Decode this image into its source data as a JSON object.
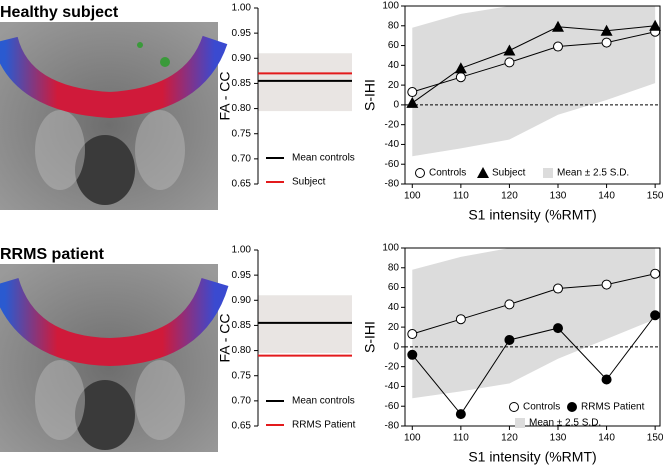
{
  "rows": [
    {
      "title": "Healthy subject"
    },
    {
      "title": "RRMS patient"
    }
  ],
  "chart_data": [
    {
      "type": "level",
      "ylabel": "FA - CC",
      "ylim": [
        0.65,
        1.0
      ],
      "yticks": [
        0.65,
        {
          "value": 0.7,
          "label": "0.70"
        },
        0.75,
        {
          "value": 0.8,
          "label": "0.80"
        },
        0.85,
        {
          "value": 0.9,
          "label": "0.90"
        },
        0.95,
        {
          "value": 1.0,
          "label": "1.00"
        }
      ],
      "band": {
        "lower": 0.795,
        "upper": 0.91,
        "color": "#e9e5e3"
      },
      "series": [
        {
          "name": "Mean controls",
          "color": "#000000",
          "values": [
            0.855
          ]
        },
        {
          "name": "Subject",
          "color": "#e31a1c",
          "values": [
            0.87
          ]
        }
      ]
    },
    {
      "type": "line",
      "ylabel": "S-IHI",
      "xlabel": "S1 intensity (%RMT)",
      "x": [
        100,
        110,
        120,
        130,
        140,
        150
      ],
      "xlim": [
        98.5,
        151
      ],
      "xticks": [
        100,
        110,
        120,
        130,
        140,
        150
      ],
      "ylim": [
        -80,
        100
      ],
      "yticks": [
        -80,
        -60,
        -40,
        -20,
        0,
        20,
        40,
        60,
        80,
        100
      ],
      "reference_line": 0,
      "band": {
        "name": "Mean ± 2.5 S.D.",
        "color": "#dcdcdc",
        "lower": [
          -52,
          -44,
          -35,
          -10,
          5,
          22
        ],
        "upper": [
          78,
          92,
          100,
          100,
          100,
          100
        ]
      },
      "series": [
        {
          "name": "Controls",
          "color": "#000000",
          "marker": "circle-open",
          "values": [
            13,
            28,
            43,
            59,
            63,
            74
          ]
        },
        {
          "name": "Subject",
          "color": "#000000",
          "marker": "triangle",
          "values": [
            2,
            37,
            55,
            79,
            75,
            80
          ]
        }
      ]
    },
    {
      "type": "level",
      "ylabel": "FA - CC",
      "ylim": [
        0.65,
        1.0
      ],
      "yticks": [
        0.65,
        {
          "value": 0.7,
          "label": "0.70"
        },
        0.75,
        {
          "value": 0.8,
          "label": "0.80"
        },
        0.85,
        {
          "value": 0.9,
          "label": "0.90"
        },
        0.95,
        {
          "value": 1.0,
          "label": "1.00"
        }
      ],
      "band": {
        "lower": 0.795,
        "upper": 0.91,
        "color": "#e9e5e3"
      },
      "series": [
        {
          "name": "Mean controls",
          "color": "#000000",
          "values": [
            0.855
          ]
        },
        {
          "name": "RRMS Patient",
          "color": "#e31a1c",
          "values": [
            0.79
          ]
        }
      ]
    },
    {
      "type": "line",
      "ylabel": "S-IHI",
      "xlabel": "S1 intensity (%RMT)",
      "x": [
        100,
        110,
        120,
        130,
        140,
        150
      ],
      "xlim": [
        98.5,
        151
      ],
      "xticks": [
        100,
        110,
        120,
        130,
        140,
        150
      ],
      "ylim": [
        -80,
        100
      ],
      "yticks": [
        -80,
        -60,
        -40,
        -20,
        0,
        20,
        40,
        60,
        80,
        100
      ],
      "reference_line": 0,
      "band": {
        "name": "Mean ± 2.5 S.D.",
        "color": "#dcdcdc",
        "lower": [
          -52,
          -45,
          -37,
          -12,
          8,
          28
        ],
        "upper": [
          78,
          91,
          100,
          100,
          100,
          100
        ]
      },
      "series": [
        {
          "name": "Controls",
          "color": "#000000",
          "marker": "circle-open",
          "values": [
            13,
            28,
            43,
            59,
            63,
            74
          ]
        },
        {
          "name": "RRMS Patient",
          "color": "#000000",
          "marker": "circle-filled",
          "values": [
            -8,
            -68,
            7,
            19,
            -33,
            32
          ]
        }
      ]
    }
  ]
}
